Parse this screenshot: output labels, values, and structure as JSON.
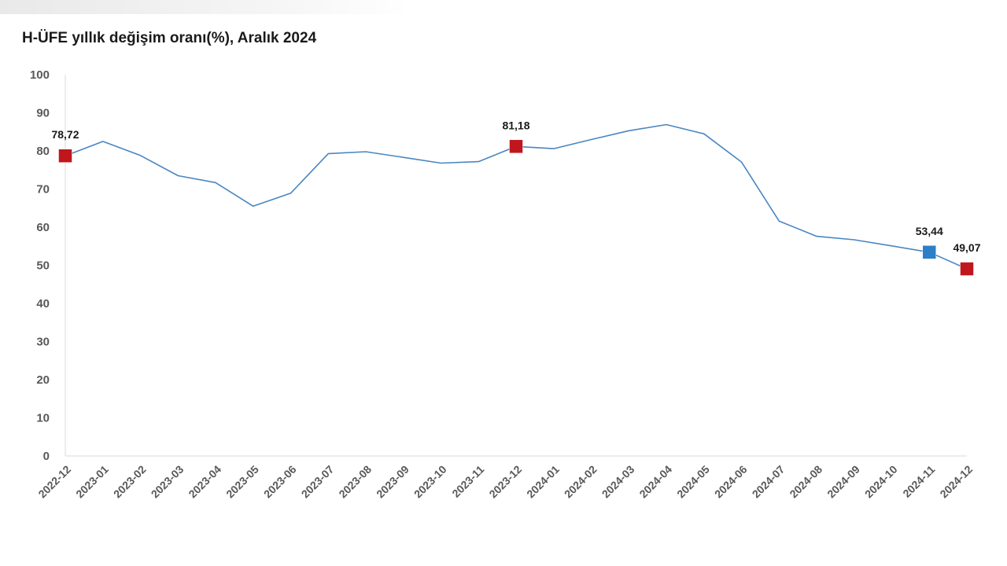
{
  "chart_data": {
    "type": "line",
    "title": "H-ÜFE yıllık değişim oranı(%), Aralık 2024",
    "xlabel": "",
    "ylabel": "",
    "ylim": [
      0,
      100
    ],
    "yticks": [
      "0",
      "10",
      "20",
      "30",
      "40",
      "50",
      "60",
      "70",
      "80",
      "90",
      "100"
    ],
    "grid": false,
    "legend": "none",
    "categories": [
      "2022-12",
      "2023-01",
      "2023-02",
      "2023-03",
      "2023-04",
      "2023-05",
      "2023-06",
      "2023-07",
      "2023-08",
      "2023-09",
      "2023-10",
      "2023-11",
      "2023-12",
      "2024-01",
      "2024-02",
      "2024-03",
      "2024-04",
      "2024-05",
      "2024-06",
      "2024-07",
      "2024-08",
      "2024-09",
      "2024-10",
      "2024-11",
      "2024-12"
    ],
    "series": [
      {
        "values": [
          78.72,
          82.5,
          78.8,
          73.5,
          71.7,
          65.5,
          68.9,
          79.3,
          79.8,
          78.3,
          76.8,
          77.2,
          81.18,
          80.6,
          83.0,
          85.3,
          86.9,
          84.5,
          77.1,
          61.6,
          57.6,
          56.7,
          55.1,
          53.44,
          49.07
        ],
        "color": "#4a86c0"
      }
    ],
    "highlighted_points": [
      {
        "category": "2022-12",
        "value": 78.72,
        "label": "78,72",
        "color": "#c0161d"
      },
      {
        "category": "2023-12",
        "value": 81.18,
        "label": "81,18",
        "color": "#c0161d"
      },
      {
        "category": "2024-11",
        "value": 53.44,
        "label": "53,44",
        "color": "#2d7fc7"
      },
      {
        "category": "2024-12",
        "value": 49.07,
        "label": "49,07",
        "color": "#c0161d"
      }
    ],
    "colors": {
      "axis": "#d9d9d9",
      "tick_text": "#595959",
      "label_text": "#1a1a1a"
    }
  }
}
